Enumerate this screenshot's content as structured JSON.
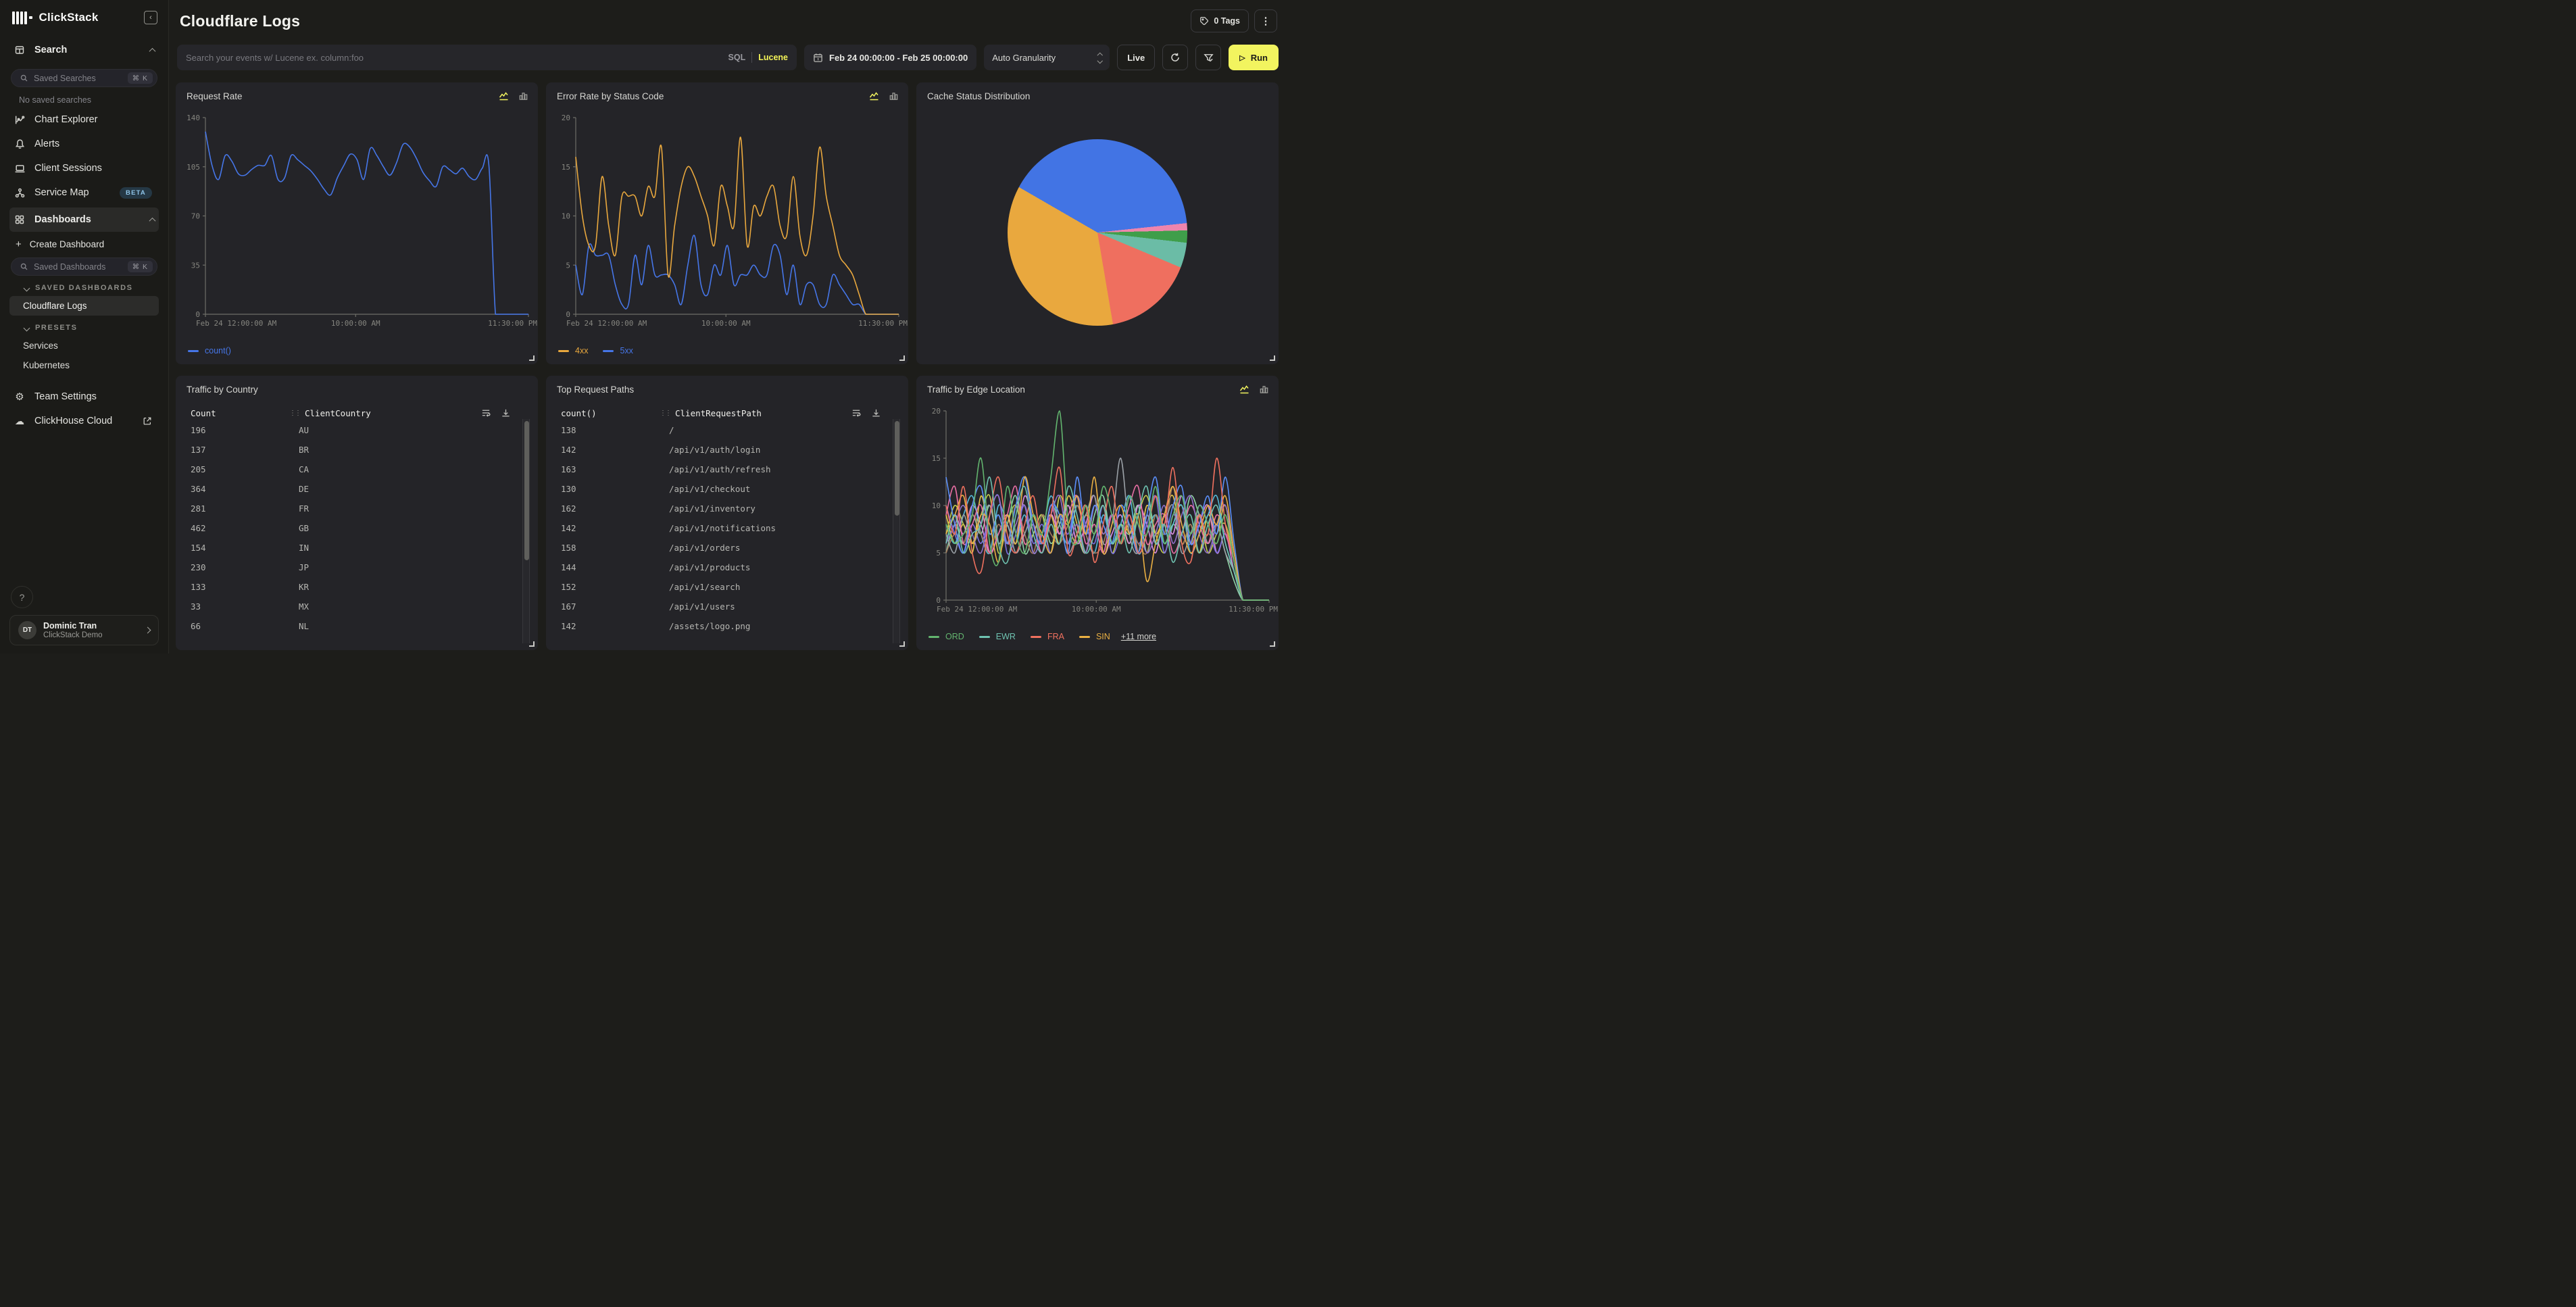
{
  "sidebar": {
    "brand": "ClickStack",
    "search_section": "Search",
    "saved_searches_placeholder": "Saved Searches",
    "shortcut": "⌘ K",
    "no_saved_searches": "No saved searches",
    "nav": {
      "chart_explorer": "Chart Explorer",
      "alerts": "Alerts",
      "client_sessions": "Client Sessions",
      "service_map": "Service Map",
      "service_map_badge": "BETA",
      "dashboards": "Dashboards"
    },
    "create_dashboard": "Create Dashboard",
    "saved_dashboards_placeholder": "Saved Dashboards",
    "saved_dashboards_header": "SAVED DASHBOARDS",
    "saved_dashboard_items": [
      "Cloudflare Logs"
    ],
    "presets_header": "PRESETS",
    "preset_items": [
      "Services",
      "Kubernetes"
    ],
    "team_settings": "Team Settings",
    "clickhouse_cloud": "ClickHouse Cloud",
    "help_label": "?",
    "user": {
      "initials": "DT",
      "name": "Dominic Tran",
      "org": "ClickStack Demo"
    }
  },
  "header": {
    "title": "Cloudflare Logs",
    "tags_label": "0 Tags"
  },
  "filters": {
    "search_placeholder": "Search your events w/ Lucene ex. column:foo",
    "sql_label": "SQL",
    "lucene_label": "Lucene",
    "date_range": "Feb 24 00:00:00 - Feb 25 00:00:00",
    "granularity": "Auto Granularity",
    "live_label": "Live",
    "run_label": "Run"
  },
  "chart_data": [
    {
      "type": "line",
      "title": "Request Rate",
      "ylabel": "",
      "xlabel": "",
      "ylim": [
        0,
        140
      ],
      "yticks": [
        0,
        35,
        70,
        105,
        140
      ],
      "xlabels": [
        "Feb 24 12:00:00 AM",
        "10:00:00 AM",
        "11:30:00 PM"
      ],
      "grid": false,
      "legend_position": "bottom-left",
      "series": [
        {
          "name": "count()",
          "color": "#4676e8",
          "values": [
            130,
            106,
            96,
            113,
            109,
            100,
            99,
            103,
            106,
            106,
            113,
            96,
            97,
            113,
            110,
            106,
            102,
            96,
            89,
            85,
            97,
            106,
            114,
            110,
            96,
            118,
            113,
            105,
            99,
            108,
            121,
            119,
            111,
            101,
            95,
            91,
            105,
            103,
            100,
            104,
            98,
            96,
            104,
            106,
            0,
            0,
            0,
            0,
            0,
            0
          ]
        }
      ]
    },
    {
      "type": "line",
      "title": "Error Rate by Status Code",
      "ylabel": "",
      "xlabel": "",
      "ylim": [
        0,
        20
      ],
      "yticks": [
        0,
        5,
        10,
        15,
        20
      ],
      "xlabels": [
        "Feb 24 12:00:00 AM",
        "10:00:00 AM",
        "11:30:00 PM"
      ],
      "grid": false,
      "legend_position": "bottom-left",
      "series": [
        {
          "name": "4xx",
          "color": "#e9a83e",
          "values": [
            16,
            10,
            7,
            7,
            14,
            9,
            6,
            12,
            12,
            12,
            10,
            13,
            12,
            17,
            4,
            9,
            13,
            15,
            14,
            12,
            10,
            7,
            13,
            11,
            9,
            18,
            7,
            11,
            10,
            12,
            13,
            9,
            8,
            14,
            8,
            6,
            10,
            17,
            12,
            9,
            6,
            5,
            4,
            2,
            0,
            0,
            0,
            0,
            0,
            0
          ]
        },
        {
          "name": "5xx",
          "color": "#4676e8",
          "values": [
            5,
            2,
            7,
            6,
            6,
            6,
            3,
            1,
            1,
            6,
            3,
            7,
            4,
            4,
            4,
            3,
            1,
            5,
            8,
            3,
            2,
            5,
            4,
            7,
            3,
            4,
            4,
            5,
            4,
            4,
            7,
            6,
            2,
            5,
            1,
            3,
            3,
            1,
            1,
            4,
            3,
            2,
            1,
            1,
            0,
            0,
            0,
            0,
            0,
            0
          ]
        }
      ]
    },
    {
      "type": "pie",
      "title": "Cache Status Distribution",
      "start_angle_deg": -60,
      "slices": [
        {
          "color": "#4274e4",
          "pct": 40
        },
        {
          "color": "#ee85ad",
          "pct": 1.3
        },
        {
          "color": "#3f9e4a",
          "pct": 2.2
        },
        {
          "color": "#6bbca6",
          "pct": 4.5
        },
        {
          "color": "#ef6f5f",
          "pct": 16
        },
        {
          "color": "#e9a83e",
          "pct": 36
        }
      ]
    },
    {
      "type": "table",
      "title": "Traffic by Country",
      "columns": [
        "Count",
        "ClientCountry"
      ],
      "rows": [
        [
          "196",
          "AU"
        ],
        [
          "137",
          "BR"
        ],
        [
          "205",
          "CA"
        ],
        [
          "364",
          "DE"
        ],
        [
          "281",
          "FR"
        ],
        [
          "462",
          "GB"
        ],
        [
          "154",
          "IN"
        ],
        [
          "230",
          "JP"
        ],
        [
          "133",
          "KR"
        ],
        [
          "33",
          "MX"
        ],
        [
          "66",
          "NL"
        ]
      ]
    },
    {
      "type": "table",
      "title": "Top Request Paths",
      "columns": [
        "count()",
        "ClientRequestPath"
      ],
      "rows": [
        [
          "138",
          "/"
        ],
        [
          "142",
          "/api/v1/auth/login"
        ],
        [
          "163",
          "/api/v1/auth/refresh"
        ],
        [
          "130",
          "/api/v1/checkout"
        ],
        [
          "162",
          "/api/v1/inventory"
        ],
        [
          "142",
          "/api/v1/notifications"
        ],
        [
          "158",
          "/api/v1/orders"
        ],
        [
          "144",
          "/api/v1/products"
        ],
        [
          "152",
          "/api/v1/search"
        ],
        [
          "167",
          "/api/v1/users"
        ],
        [
          "142",
          "/assets/logo.png"
        ]
      ]
    },
    {
      "type": "line",
      "title": "Traffic by Edge Location",
      "ylabel": "",
      "xlabel": "",
      "ylim": [
        0,
        20
      ],
      "yticks": [
        0,
        5,
        10,
        15,
        20
      ],
      "xlabels": [
        "Feb 24 12:00:00 AM",
        "10:00:00 AM",
        "11:30:00 PM"
      ],
      "grid": false,
      "legend_position": "bottom-left",
      "legend_more": "+11 more",
      "legend_named": 4,
      "series": [
        {
          "name": "ORD",
          "color": "#63b56f",
          "values": [
            8,
            6,
            7,
            9,
            15,
            6,
            4,
            12,
            7,
            5,
            9,
            7,
            13,
            20,
            8,
            6,
            10,
            7,
            12,
            9,
            6,
            11,
            8,
            7,
            12,
            6,
            9,
            11,
            7,
            10,
            8,
            6,
            9,
            4,
            0,
            0,
            0,
            0
          ]
        },
        {
          "name": "EWR",
          "color": "#6fc3b1",
          "values": [
            6,
            9,
            5,
            7,
            8,
            13,
            6,
            4,
            9,
            12,
            7,
            5,
            8,
            6,
            12,
            9,
            5,
            7,
            10,
            6,
            8,
            5,
            9,
            12,
            6,
            8,
            4,
            7,
            9,
            5,
            8,
            10,
            6,
            3,
            0,
            0,
            0,
            0
          ]
        },
        {
          "name": "FRA",
          "color": "#f0715f",
          "values": [
            10,
            7,
            12,
            5,
            3,
            9,
            13,
            7,
            5,
            8,
            11,
            6,
            9,
            14,
            5,
            7,
            10,
            4,
            8,
            12,
            6,
            9,
            5,
            7,
            11,
            8,
            14,
            6,
            4,
            9,
            7,
            15,
            8,
            4,
            0,
            0,
            0,
            0
          ]
        },
        {
          "name": "SIN",
          "color": "#eab043",
          "values": [
            7,
            9,
            11,
            6,
            9,
            8,
            4,
            9,
            6,
            13,
            9,
            7,
            5,
            9,
            8,
            11,
            7,
            13,
            5,
            8,
            10,
            7,
            9,
            2,
            6,
            9,
            12,
            8,
            5,
            7,
            10,
            8,
            11,
            5,
            0,
            0,
            0,
            0
          ]
        },
        {
          "name": "",
          "color": "#5b8ff9",
          "values": [
            13,
            8,
            5,
            10,
            12,
            7,
            9,
            6,
            10,
            13,
            8,
            6,
            10,
            9,
            5,
            13,
            7,
            10,
            8,
            6,
            10,
            8,
            5,
            9,
            13,
            7,
            10,
            12,
            6,
            8,
            11,
            7,
            13,
            6,
            0,
            0,
            0,
            0
          ]
        },
        {
          "name": "",
          "color": "#9270ca",
          "values": [
            6,
            8,
            10,
            7,
            5,
            9,
            11,
            6,
            8,
            10,
            5,
            7,
            9,
            11,
            6,
            8,
            5,
            10,
            7,
            9,
            6,
            11,
            8,
            5,
            7,
            10,
            6,
            9,
            11,
            7,
            5,
            8,
            10,
            5,
            0,
            0,
            0,
            0
          ]
        },
        {
          "name": "",
          "color": "#e96fa5",
          "values": [
            9,
            12,
            6,
            8,
            10,
            5,
            7,
            9,
            12,
            6,
            8,
            5,
            10,
            7,
            9,
            11,
            6,
            8,
            5,
            9,
            7,
            10,
            12,
            6,
            8,
            9,
            5,
            7,
            10,
            8,
            6,
            9,
            7,
            4,
            0,
            0,
            0,
            0
          ]
        },
        {
          "name": "",
          "color": "#9aa0a6",
          "values": [
            7,
            5,
            9,
            6,
            8,
            10,
            6,
            8,
            5,
            7,
            9,
            6,
            10,
            8,
            5,
            7,
            9,
            11,
            6,
            8,
            15,
            7,
            5,
            9,
            6,
            8,
            10,
            5,
            7,
            9,
            6,
            8,
            5,
            3,
            0,
            0,
            0,
            0
          ]
        },
        {
          "name": "",
          "color": "#a57a5e",
          "values": [
            5,
            7,
            6,
            9,
            7,
            5,
            8,
            6,
            10,
            7,
            5,
            9,
            7,
            6,
            8,
            10,
            7,
            5,
            6,
            9,
            7,
            8,
            6,
            5,
            9,
            7,
            12,
            6,
            8,
            5,
            7,
            6,
            9,
            4,
            0,
            0,
            0,
            0
          ]
        },
        {
          "name": "",
          "color": "#54b9d8",
          "values": [
            8,
            6,
            9,
            11,
            7,
            5,
            10,
            8,
            6,
            9,
            5,
            7,
            11,
            8,
            6,
            10,
            7,
            5,
            9,
            6,
            8,
            11,
            5,
            7,
            9,
            6,
            8,
            10,
            5,
            7,
            9,
            11,
            6,
            3,
            0,
            0,
            0,
            0
          ]
        },
        {
          "name": "",
          "color": "#7b6fe0",
          "values": [
            10,
            7,
            5,
            8,
            6,
            9,
            11,
            5,
            7,
            10,
            6,
            8,
            5,
            9,
            7,
            11,
            8,
            6,
            10,
            5,
            7,
            9,
            6,
            8,
            11,
            5,
            9,
            7,
            6,
            10,
            8,
            5,
            7,
            4,
            0,
            0,
            0,
            0
          ]
        },
        {
          "name": "",
          "color": "#d98ce0",
          "values": [
            6,
            9,
            7,
            10,
            8,
            5,
            7,
            9,
            6,
            11,
            8,
            5,
            9,
            7,
            10,
            6,
            8,
            11,
            5,
            7,
            9,
            6,
            10,
            8,
            5,
            9,
            7,
            11,
            6,
            8,
            10,
            5,
            7,
            3,
            0,
            0,
            0,
            0
          ]
        },
        {
          "name": "",
          "color": "#c2cc4e",
          "values": [
            7,
            10,
            8,
            6,
            9,
            11,
            5,
            8,
            10,
            6,
            7,
            9,
            5,
            11,
            8,
            6,
            9,
            7,
            10,
            5,
            8,
            6,
            9,
            11,
            7,
            5,
            8,
            10,
            6,
            9,
            5,
            7,
            8,
            4,
            0,
            0,
            0,
            0
          ]
        },
        {
          "name": "",
          "color": "#e8c84a",
          "values": [
            9,
            6,
            8,
            5,
            11,
            7,
            9,
            6,
            8,
            10,
            5,
            7,
            9,
            6,
            11,
            8,
            5,
            10,
            7,
            9,
            6,
            8,
            5,
            10,
            7,
            9,
            11,
            6,
            8,
            5,
            9,
            7,
            10,
            4,
            0,
            0,
            0,
            0
          ]
        },
        {
          "name": "",
          "color": "#8fd3a8",
          "values": [
            5,
            8,
            6,
            9,
            7,
            10,
            6,
            8,
            11,
            5,
            7,
            9,
            6,
            8,
            10,
            7,
            5,
            9,
            11,
            6,
            8,
            7,
            10,
            5,
            9,
            6,
            8,
            7,
            11,
            9,
            6,
            8,
            5,
            2,
            0,
            0,
            0,
            0
          ]
        }
      ]
    }
  ]
}
